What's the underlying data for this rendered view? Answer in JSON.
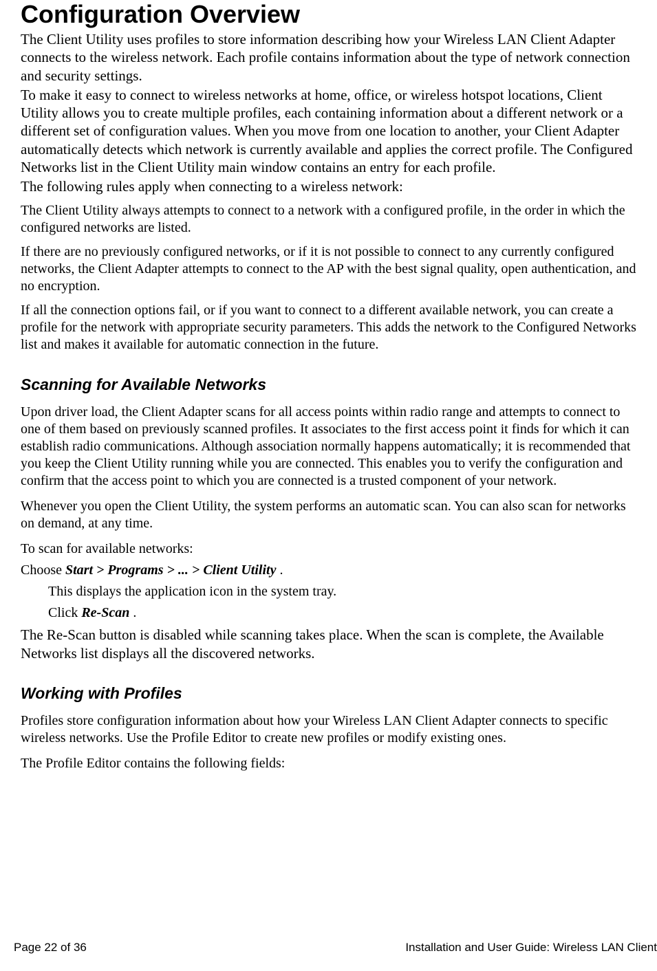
{
  "document": {
    "title": "Configuration Overview",
    "intro_paragraphs": [
      "The Client Utility uses profiles to store information describing how your Wireless LAN Client Adapter connects to the wireless network. Each profile contains information about the type of network connection and security settings.",
      "To make it easy to connect to wireless networks at home, office, or wireless hotspot locations, Client Utility allows you to create multiple profiles, each containing information about a different network or a different set of configuration values. When you move from one location to another, your Client Adapter automatically detects which network is currently available and applies the correct profile. The Configured Networks list in the Client Utility main window contains an entry for each profile.",
      "The following rules apply when connecting to a wireless network:"
    ],
    "rules": [
      "The Client Utility always attempts to connect to a network with a configured profile, in the order in which the configured networks are listed.",
      "If there are no previously configured networks, or if it is not possible to connect to any currently configured networks, the Client Adapter attempts to connect to the AP with the best signal quality, open authentication, and no encryption.",
      "If all the connection options fail, or if you want to connect to a different available network, you can create a profile for the network with appropriate security parameters. This adds the network to the Configured Networks list and makes it available for automatic connection in the future."
    ],
    "section_scanning": {
      "heading": "Scanning for Available Networks",
      "paragraphs": [
        "Upon driver load, the Client Adapter scans for all access points within radio range and attempts to connect to one of them based on previously scanned profiles. It associates to the first access point it finds for which it can establish radio communications. Although association normally happens automatically; it is recommended that you keep the Client Utility running while you are connected. This enables you to verify the configuration and confirm that the access point to which you are connected is a trusted component of your network.",
        "Whenever you open the Client Utility, the system performs an automatic scan. You can also scan for networks on demand, at any time.",
        "To scan for available networks:"
      ],
      "step_prefix": "Choose ",
      "step_bold": "Start > Programs > ... > Client Utility",
      "step_suffix": " .",
      "indented_steps_text_1": "This displays the application icon in the system tray.",
      "indented_step2_prefix": "Click ",
      "indented_step2_bold": "Re-Scan",
      "indented_step2_suffix": " .",
      "closing_para": "The Re-Scan button is disabled while scanning takes place. When the scan is complete, the Available Networks list displays all the discovered networks."
    },
    "section_profiles": {
      "heading": "Working with Profiles",
      "paragraphs": [
        "Profiles store configuration information about how your Wireless LAN Client Adapter connects to specific wireless networks. Use the Profile Editor to create new profiles or modify existing ones.",
        "The Profile Editor contains the following fields:"
      ]
    },
    "footer": {
      "page_info": "Page 22 of 36",
      "doc_title": "Installation and User Guide: Wireless LAN Client"
    }
  },
  "style": {
    "background_color": "#ffffff",
    "text_color": "#000000",
    "h1_fontsize": 36,
    "h2_fontsize": 23,
    "intro_fontsize": 21,
    "body_fontsize": 20,
    "footer_fontsize": 17,
    "heading_font": "Verdana",
    "body_font": "Times New Roman"
  }
}
